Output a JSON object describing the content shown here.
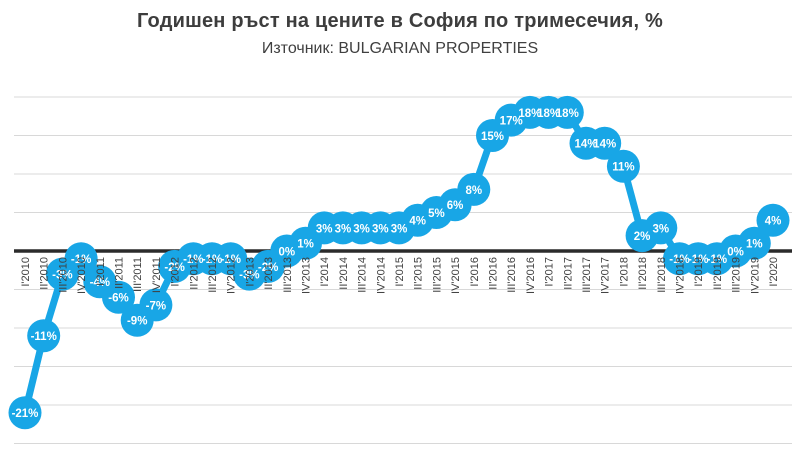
{
  "header": {
    "title": "Годишен ръст на цените в София по тримесечия, %",
    "subtitle": "Източник: BULGARIAN PROPERTIES"
  },
  "colors": {
    "background": "#ffffff",
    "series": "#18a6e6",
    "point_label": "#ffffff",
    "gridline": "#d8d8d8",
    "zero_line": "#2b2b2b",
    "title_text": "#3d3d3d",
    "axis_text": "#404040"
  },
  "chart_data": {
    "type": "line",
    "title": "Годишен ръст на цените в София по тримесечия, %",
    "subtitle": "Източник: BULGARIAN PROPERTIES",
    "categories": [
      "I'2010",
      "II'2010",
      "III'2010",
      "IV'2010",
      "I'2011",
      "II'2011",
      "III'2011",
      "IV'2011",
      "I'2012",
      "II'2012",
      "III'2012",
      "IV'2012",
      "I'2013",
      "II'2013",
      "III'2013",
      "IV'2013",
      "I'2014",
      "II'2014",
      "III'2014",
      "IV'2014",
      "I'2015",
      "II'2015",
      "III'2015",
      "IV'2015",
      "I'2016",
      "II'2016",
      "III'2016",
      "IV'2016",
      "I'2017",
      "II'2017",
      "III'2017",
      "IV'2017",
      "I'2018",
      "II'2018",
      "III'2018",
      "IV'2018",
      "I'2019",
      "II'2019",
      "III'2019",
      "IV'2019",
      "I'2020"
    ],
    "values": [
      -21,
      -11,
      -3,
      -1,
      -4,
      -6,
      -9,
      -7,
      -2,
      -1,
      -1,
      -1,
      -3,
      -2,
      0,
      1,
      3,
      3,
      3,
      3,
      3,
      4,
      5,
      6,
      8,
      15,
      17,
      18,
      18,
      18,
      14,
      14,
      11,
      2,
      3,
      -1,
      -1,
      -1,
      0,
      1,
      4
    ],
    "point_labels": [
      "-21%",
      "-11%",
      "-3%",
      "-1%",
      "-4%",
      "-6%",
      "-9%",
      "-7%",
      "-2%",
      "-1%",
      "-1%",
      "-1%",
      "-3%",
      "-2%",
      "0%",
      "1%",
      "3%",
      "3%",
      "3%",
      "3%",
      "3%",
      "4%",
      "5%",
      "6%",
      "8%",
      "15%",
      "17%",
      "18%",
      "18%",
      "18%",
      "14%",
      "14%",
      "11%",
      "2%",
      "3%",
      "-1%",
      "-1%",
      "-1%",
      "0%",
      "1%",
      "4%"
    ],
    "xlabel": "",
    "ylabel": "",
    "ylim": [
      -25,
      20
    ],
    "grid_step": 5,
    "grid": true,
    "legend_position": "none",
    "x_tick_rotation": -90,
    "zero_line_emphasized": true,
    "markers": "large-circles-with-labels"
  }
}
